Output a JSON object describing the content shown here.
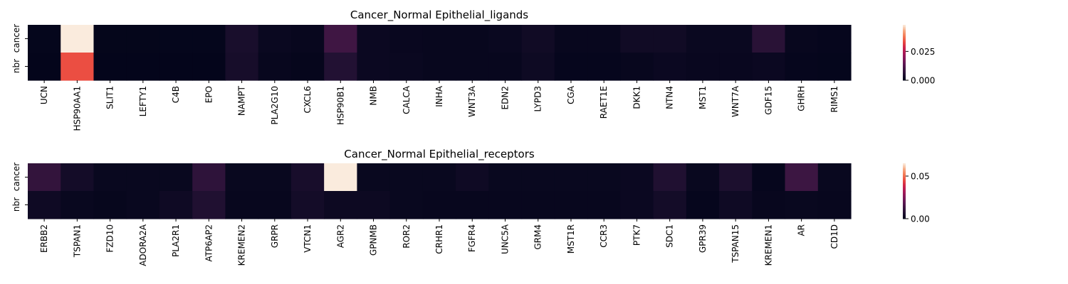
{
  "chart_data": [
    {
      "type": "heatmap",
      "title": "Cancer_Normal Epithelial_ligands",
      "rows": [
        "cancer",
        "nbr"
      ],
      "columns": [
        "UCN",
        "HSP90AA1",
        "SLIT1",
        "LEFTY1",
        "C4B",
        "EPO",
        "NAMPT",
        "PLA2G10",
        "CXCL6",
        "HSP90B1",
        "NMB",
        "CALCA",
        "INHA",
        "WNT3A",
        "EDN2",
        "LYPD3",
        "CGA",
        "RAET1E",
        "DKK1",
        "NTN4",
        "MST1",
        "WNT7A",
        "GDF15",
        "GHRH",
        "RIMS1"
      ],
      "values": [
        [
          0.0004,
          0.048,
          0.0003,
          0.0003,
          0.0004,
          0.0004,
          0.004,
          0.0012,
          0.0008,
          0.01,
          0.0015,
          0.001,
          0.0008,
          0.0008,
          0.0012,
          0.0025,
          0.0008,
          0.0008,
          0.0025,
          0.0025,
          0.0012,
          0.0012,
          0.0065,
          0.0008,
          0.0006
        ],
        [
          0.0002,
          0.034,
          0.0002,
          0.0002,
          0.0002,
          0.0002,
          0.0035,
          0.0008,
          0.0005,
          0.0055,
          0.0015,
          0.0012,
          0.0008,
          0.0008,
          0.0008,
          0.002,
          0.0006,
          0.0006,
          0.0008,
          0.0015,
          0.001,
          0.001,
          0.0015,
          0.0006,
          0.0004
        ]
      ],
      "colorbar": {
        "min": 0.0,
        "max": 0.048,
        "ticks": [
          "0.000",
          "0.025"
        ],
        "tick_values": [
          0.0,
          0.025
        ]
      }
    },
    {
      "type": "heatmap",
      "title": "Cancer_Normal Epithelial_receptors",
      "rows": [
        "cancer",
        "nbr"
      ],
      "columns": [
        "ERBB2",
        "TSPAN1",
        "FZD10",
        "ADORA2A",
        "PLA2R1",
        "ATP6AP2",
        "KREMEN2",
        "GRPR",
        "VTCN1",
        "AGR2",
        "GPNMB",
        "ROR2",
        "CRHR1",
        "FGFR4",
        "UNC5A",
        "GRM4",
        "MST1R",
        "CCR3",
        "PTK7",
        "SDC1",
        "GPR39",
        "TSPAN15",
        "KREMEN1",
        "AR",
        "CD1D"
      ],
      "values": [
        [
          0.011,
          0.004,
          0.0015,
          0.0015,
          0.0015,
          0.01,
          0.0015,
          0.0015,
          0.005,
          0.065,
          0.0015,
          0.0015,
          0.0015,
          0.003,
          0.0015,
          0.0015,
          0.0015,
          0.0015,
          0.002,
          0.007,
          0.0015,
          0.006,
          0.0008,
          0.013,
          0.0015
        ],
        [
          0.003,
          0.0015,
          0.001,
          0.0015,
          0.003,
          0.007,
          0.0012,
          0.0012,
          0.004,
          0.0025,
          0.0025,
          0.0015,
          0.0012,
          0.0012,
          0.0012,
          0.0012,
          0.0012,
          0.0012,
          0.002,
          0.004,
          0.0008,
          0.003,
          0.0012,
          0.0015,
          0.0012
        ]
      ],
      "colorbar": {
        "min": 0.0,
        "max": 0.065,
        "ticks": [
          "0.00",
          "0.05"
        ],
        "tick_values": [
          0.0,
          0.05
        ]
      }
    }
  ]
}
